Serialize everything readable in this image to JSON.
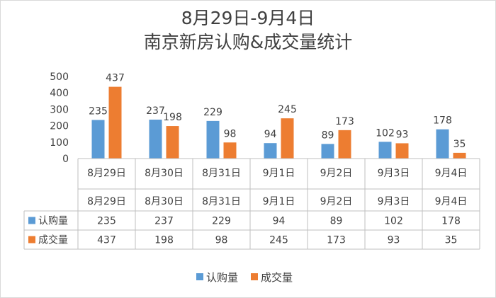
{
  "title_line1": "8月29日-9月4日",
  "title_line2": "南京新房认购&成交量统计",
  "colors": {
    "series1": "#5b9bd5",
    "series2": "#ed7d31",
    "axis": "#bfbfbf",
    "text": "#404040"
  },
  "chart_data": {
    "type": "bar",
    "title": "8月29日-9月4日 南京新房认购&成交量统计",
    "categories": [
      "8月29日",
      "8月30日",
      "8月31日",
      "9月1日",
      "9月2日",
      "9月3日",
      "9月4日"
    ],
    "series": [
      {
        "name": "认购量",
        "values": [
          235,
          237,
          229,
          94,
          89,
          102,
          178
        ]
      },
      {
        "name": "成交量",
        "values": [
          437,
          198,
          98,
          245,
          173,
          93,
          35
        ]
      }
    ],
    "ylim": [
      0,
      500
    ],
    "yticks": [
      0,
      100,
      200,
      300,
      400,
      500
    ],
    "gridlines": false,
    "legend_position": "bottom",
    "data_table": true
  }
}
